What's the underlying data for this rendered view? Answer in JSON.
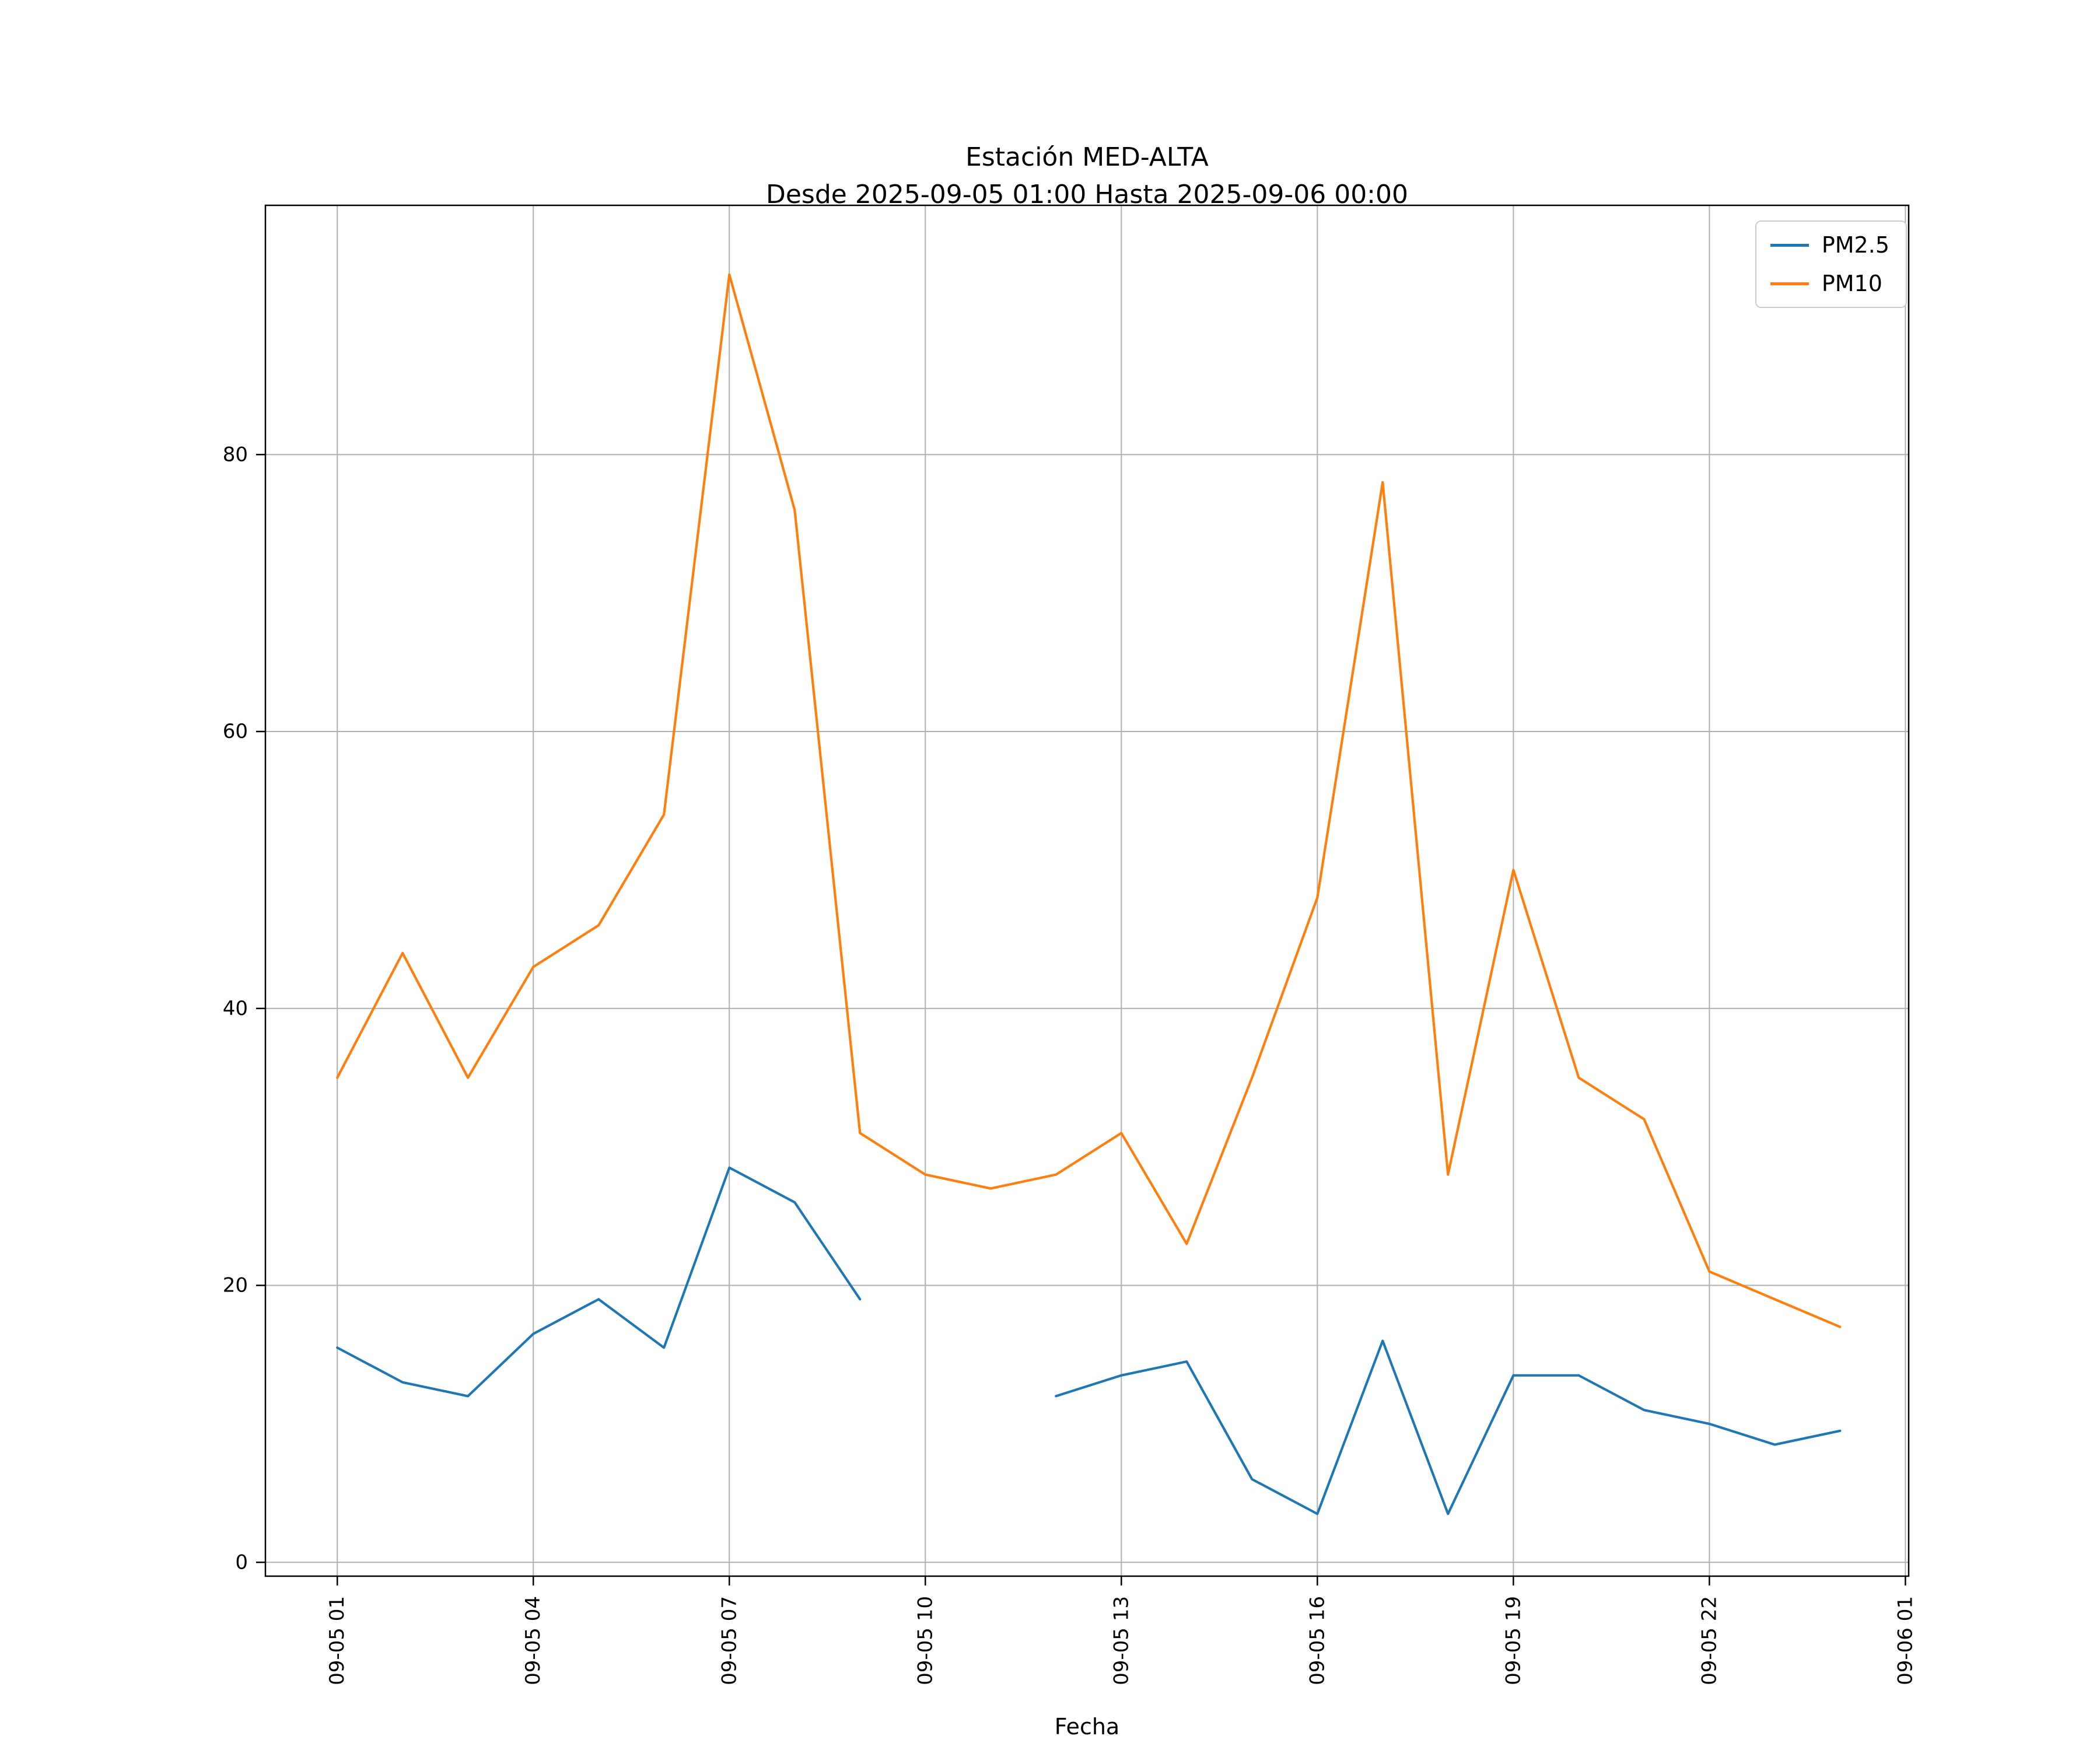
{
  "figure": {
    "background": "#ffffff"
  },
  "chart_data": {
    "type": "line",
    "title": "Estación MED-ALTA",
    "subtitle": "Desde 2025-09-05 01:00 Hasta 2025-09-06 00:00",
    "xlabel": "Fecha",
    "ylabel": "",
    "x_hours": [
      1,
      2,
      3,
      4,
      5,
      6,
      7,
      8,
      9,
      10,
      11,
      12,
      13,
      14,
      15,
      16,
      17,
      18,
      19,
      20,
      21,
      22,
      23,
      24
    ],
    "series": [
      {
        "name": "PM2.5",
        "color": "#1f77b4",
        "values": [
          15.5,
          13,
          12,
          16.5,
          19,
          15.5,
          28.5,
          26,
          19,
          null,
          null,
          12,
          13.5,
          14.5,
          6,
          3.5,
          16,
          3.5,
          13.5,
          13.5,
          11,
          10,
          8.5,
          9.5
        ]
      },
      {
        "name": "PM10",
        "color": "#ff7f0e",
        "values": [
          35,
          44,
          35,
          43,
          46,
          54,
          93,
          76,
          31,
          28,
          27,
          28,
          31,
          23,
          35,
          48,
          78,
          28,
          50,
          35,
          32,
          21,
          19,
          17
        ]
      }
    ],
    "xticks": {
      "positions": [
        1,
        4,
        7,
        10,
        13,
        16,
        19,
        22,
        25
      ],
      "labels": [
        "09-05 01",
        "09-05 04",
        "09-05 07",
        "09-05 10",
        "09-05 13",
        "09-05 16",
        "09-05 19",
        "09-05 22",
        "09-06 01"
      ]
    },
    "yticks": [
      0,
      20,
      40,
      60,
      80
    ],
    "xlim": [
      -0.1,
      25.05
    ],
    "ylim": [
      -1,
      98
    ],
    "grid": true,
    "grid_color": "#b0b0b0",
    "axis_color": "#000000",
    "legend_position": "upper right"
  }
}
